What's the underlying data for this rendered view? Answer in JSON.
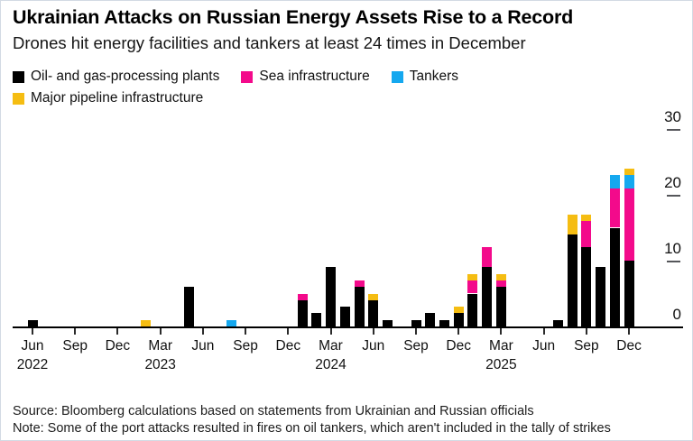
{
  "header": {
    "title": "Ukrainian Attacks on Russian Energy Assets Rise to a Record",
    "subtitle": "Drones hit energy facilities and tankers at least 24 times in December"
  },
  "legend": {
    "rows": [
      [
        {
          "label": "Oil- and gas-processing plants",
          "color": "#000000"
        },
        {
          "label": "Sea infrastructure",
          "color": "#f30a8b"
        },
        {
          "label": "Tankers",
          "color": "#15a8ef"
        }
      ],
      [
        {
          "label": "Major pipeline infrastructure",
          "color": "#f5bd12"
        }
      ]
    ]
  },
  "chart_data": {
    "type": "bar",
    "stacked": true,
    "title": "Ukrainian Attacks on Russian Energy Assets Rise to a Record",
    "subtitle": "Drones hit energy facilities and tankers at least 24 times in December",
    "categories": [
      "Jun 2022",
      "Jul 2022",
      "Aug 2022",
      "Sep 2022",
      "Oct 2022",
      "Nov 2022",
      "Dec 2022",
      "Jan 2023",
      "Feb 2023",
      "Mar 2023",
      "Apr 2023",
      "May 2023",
      "Jun 2023",
      "Jul 2023",
      "Aug 2023",
      "Sep 2023",
      "Oct 2023",
      "Nov 2023",
      "Dec 2023",
      "Jan 2024",
      "Feb 2024",
      "Mar 2024",
      "Apr 2024",
      "May 2024",
      "Jun 2024",
      "Jul 2024",
      "Aug 2024",
      "Sep 2024",
      "Oct 2024",
      "Nov 2024",
      "Dec 2024",
      "Jan 2025",
      "Feb 2025",
      "Mar 2025",
      "Apr 2025",
      "May 2025",
      "Jun 2025",
      "Jul 2025",
      "Aug 2025",
      "Sep 2025",
      "Oct 2025",
      "Nov 2025",
      "Dec 2025"
    ],
    "series": [
      {
        "name": "Oil- and gas-processing plants",
        "color": "#000000",
        "values": [
          1,
          0,
          0,
          0,
          0,
          0,
          0,
          0,
          0,
          0,
          0,
          6,
          0,
          0,
          0,
          0,
          0,
          0,
          0,
          4,
          2,
          9,
          3,
          6,
          4,
          1,
          0,
          1,
          2,
          1,
          2,
          5,
          9,
          6,
          0,
          0,
          0,
          1,
          14,
          12,
          9,
          15,
          10
        ]
      },
      {
        "name": "Sea infrastructure",
        "color": "#f30a8b",
        "values": [
          0,
          0,
          0,
          0,
          0,
          0,
          0,
          0,
          0,
          0,
          0,
          0,
          0,
          0,
          0,
          0,
          0,
          0,
          0,
          1,
          0,
          0,
          0,
          1,
          0,
          0,
          0,
          0,
          0,
          0,
          0,
          2,
          3,
          1,
          0,
          0,
          0,
          0,
          0,
          4,
          0,
          6,
          11
        ]
      },
      {
        "name": "Tankers",
        "color": "#15a8ef",
        "values": [
          0,
          0,
          0,
          0,
          0,
          0,
          0,
          0,
          0,
          0,
          0,
          0,
          0,
          0,
          1,
          0,
          0,
          0,
          0,
          0,
          0,
          0,
          0,
          0,
          0,
          0,
          0,
          0,
          0,
          0,
          0,
          0,
          0,
          0,
          0,
          0,
          0,
          0,
          0,
          0,
          0,
          2,
          2
        ]
      },
      {
        "name": "Major pipeline infrastructure",
        "color": "#f5bd12",
        "values": [
          0,
          0,
          0,
          0,
          0,
          0,
          0,
          0,
          1,
          0,
          0,
          0,
          0,
          0,
          0,
          0,
          0,
          0,
          0,
          0,
          0,
          0,
          0,
          0,
          1,
          0,
          0,
          0,
          0,
          0,
          1,
          1,
          0,
          1,
          0,
          0,
          0,
          0,
          3,
          1,
          0,
          0,
          1
        ]
      }
    ],
    "stack_order_bottom_to_top": [
      "Oil- and gas-processing plants",
      "Sea infrastructure",
      "Tankers",
      "Major pipeline infrastructure"
    ],
    "y_axis": {
      "position": "right",
      "ticks": [
        0,
        10,
        20,
        30
      ],
      "tick_labels": [
        "0",
        "10",
        "20",
        "30"
      ],
      "range": [
        0,
        33
      ],
      "grid": false
    },
    "x_axis": {
      "tick_every_months": 3,
      "tick_labels": [
        "Jun",
        "Sep",
        "Dec",
        "Mar",
        "Jun",
        "Sep",
        "Dec",
        "Mar",
        "Jun",
        "Sep",
        "Dec",
        "Mar",
        "Jun",
        "Sep",
        "Dec"
      ],
      "year_labels": [
        {
          "label": "2022",
          "month_index": 0
        },
        {
          "label": "2023",
          "month_index": 9
        },
        {
          "label": "2024",
          "month_index": 21
        },
        {
          "label": "2025",
          "month_index": 33
        }
      ]
    },
    "legend_position": "top"
  },
  "footer": {
    "source": "Source: Bloomberg calculations based on statements from Ukrainian and Russian officials",
    "note": "Note: Some of the port attacks resulted in fires on oil tankers, which aren't included in the tally of strikes"
  }
}
